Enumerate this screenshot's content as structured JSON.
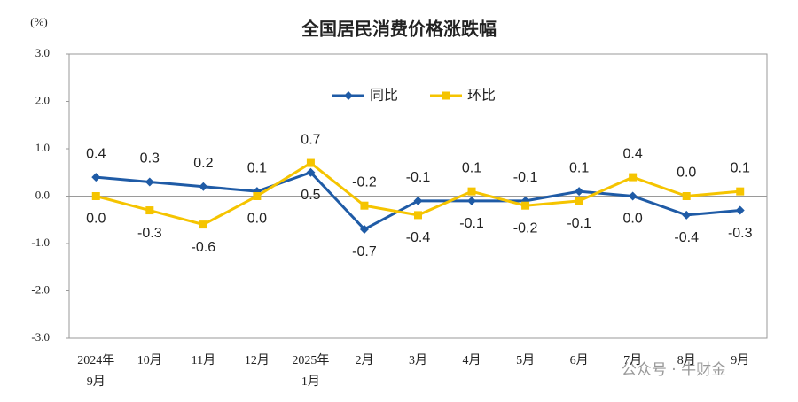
{
  "chart_data": {
    "type": "line",
    "title": "全国居民消费价格涨跌幅",
    "y_label": "(%)",
    "categories": [
      "2024年9月",
      "10月",
      "11月",
      "12月",
      "2025年1月",
      "2月",
      "3月",
      "4月",
      "5月",
      "6月",
      "7月",
      "8月",
      "9月"
    ],
    "series": [
      {
        "name": "同比",
        "color": "#1f5ba6",
        "values": [
          0.4,
          0.3,
          0.2,
          0.1,
          0.5,
          -0.7,
          -0.1,
          -0.1,
          -0.1,
          0.1,
          0.0,
          -0.4,
          -0.3
        ],
        "value_labels": [
          "0.4",
          "0.3",
          "0.2",
          "0.1",
          "0.5",
          "-0.7",
          "-0.1",
          "-0.1",
          "-0.1",
          "0.1",
          "0.0",
          "-0.4",
          "-0.3"
        ]
      },
      {
        "name": "环比",
        "color": "#f5c400",
        "values": [
          0.0,
          -0.3,
          -0.6,
          0.0,
          0.7,
          -0.2,
          -0.4,
          0.1,
          -0.2,
          -0.1,
          0.4,
          0.0,
          0.1
        ],
        "value_labels": [
          "0.0",
          "-0.3",
          "-0.6",
          "0.0",
          "0.7",
          "-0.2",
          "-0.4",
          "0.1",
          "-0.2",
          "-0.1",
          "0.4",
          "0.0",
          "0.1"
        ]
      }
    ],
    "ylim": [
      -3,
      3
    ],
    "yticks": [
      {
        "value": 3,
        "label": "3.0"
      },
      {
        "value": 2,
        "label": "2.0"
      },
      {
        "value": 1,
        "label": "1.0"
      },
      {
        "value": 0,
        "label": "0.0"
      },
      {
        "value": -1,
        "label": "-1.0"
      },
      {
        "value": -2,
        "label": "-2.0"
      },
      {
        "value": -3,
        "label": "-3.0"
      }
    ],
    "legend": "top",
    "watermark": "公众号 · 牛财金"
  }
}
